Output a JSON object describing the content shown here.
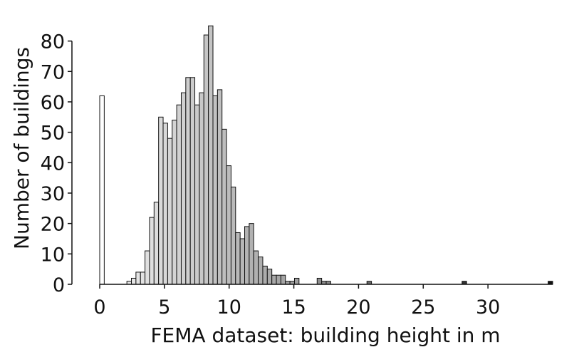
{
  "chart_data": {
    "type": "bar",
    "title": "",
    "xlabel": "FEMA dataset: building height in m",
    "ylabel": "Number of buildings",
    "xlim": [
      0,
      35
    ],
    "ylim": [
      0,
      86
    ],
    "xticks": [
      0,
      5,
      10,
      15,
      20,
      25,
      30
    ],
    "yticks": [
      0,
      10,
      20,
      30,
      40,
      50,
      60,
      70,
      80
    ],
    "grid": false,
    "bin_width": 0.35,
    "bins": [
      {
        "x0": 0.0,
        "x1": 0.35,
        "value": 62,
        "color": "#ffffff"
      },
      {
        "x0": 2.1,
        "x1": 2.45,
        "value": 1,
        "color": "#e8e8e8"
      },
      {
        "x0": 2.45,
        "x1": 2.8,
        "value": 2,
        "color": "#e6e6e6"
      },
      {
        "x0": 2.8,
        "x1": 3.15,
        "value": 4,
        "color": "#e4e4e4"
      },
      {
        "x0": 3.15,
        "x1": 3.5,
        "value": 4,
        "color": "#e2e2e2"
      },
      {
        "x0": 3.5,
        "x1": 3.85,
        "value": 11,
        "color": "#e0e0e0"
      },
      {
        "x0": 3.85,
        "x1": 4.2,
        "value": 22,
        "color": "#dedede"
      },
      {
        "x0": 4.2,
        "x1": 4.55,
        "value": 27,
        "color": "#dcdcdc"
      },
      {
        "x0": 4.55,
        "x1": 4.9,
        "value": 55,
        "color": "#dadada"
      },
      {
        "x0": 4.9,
        "x1": 5.25,
        "value": 53,
        "color": "#d8d8d8"
      },
      {
        "x0": 5.25,
        "x1": 5.6,
        "value": 48,
        "color": "#d6d6d6"
      },
      {
        "x0": 5.6,
        "x1": 5.95,
        "value": 54,
        "color": "#d4d4d4"
      },
      {
        "x0": 5.95,
        "x1": 6.3,
        "value": 59,
        "color": "#d2d2d2"
      },
      {
        "x0": 6.3,
        "x1": 6.65,
        "value": 63,
        "color": "#d0d0d0"
      },
      {
        "x0": 6.65,
        "x1": 7.0,
        "value": 68,
        "color": "#cecece"
      },
      {
        "x0": 7.0,
        "x1": 7.35,
        "value": 68,
        "color": "#cccccc"
      },
      {
        "x0": 7.35,
        "x1": 7.7,
        "value": 59,
        "color": "#cacaca"
      },
      {
        "x0": 7.7,
        "x1": 8.05,
        "value": 63,
        "color": "#c8c8c8"
      },
      {
        "x0": 8.05,
        "x1": 8.4,
        "value": 82,
        "color": "#c6c6c6"
      },
      {
        "x0": 8.4,
        "x1": 8.75,
        "value": 85,
        "color": "#c4c4c4"
      },
      {
        "x0": 8.75,
        "x1": 9.1,
        "value": 62,
        "color": "#c2c2c2"
      },
      {
        "x0": 9.1,
        "x1": 9.45,
        "value": 64,
        "color": "#c0c0c0"
      },
      {
        "x0": 9.45,
        "x1": 9.8,
        "value": 51,
        "color": "#bebebe"
      },
      {
        "x0": 9.8,
        "x1": 10.15,
        "value": 39,
        "color": "#bcbcbc"
      },
      {
        "x0": 10.15,
        "x1": 10.5,
        "value": 32,
        "color": "#bababa"
      },
      {
        "x0": 10.5,
        "x1": 10.85,
        "value": 17,
        "color": "#b8b8b8"
      },
      {
        "x0": 10.85,
        "x1": 11.2,
        "value": 15,
        "color": "#b6b6b6"
      },
      {
        "x0": 11.2,
        "x1": 11.55,
        "value": 19,
        "color": "#b4b4b4"
      },
      {
        "x0": 11.55,
        "x1": 11.9,
        "value": 20,
        "color": "#b2b2b2"
      },
      {
        "x0": 11.9,
        "x1": 12.25,
        "value": 11,
        "color": "#b0b0b0"
      },
      {
        "x0": 12.25,
        "x1": 12.6,
        "value": 9,
        "color": "#aeaeae"
      },
      {
        "x0": 12.6,
        "x1": 12.95,
        "value": 6,
        "color": "#acacac"
      },
      {
        "x0": 12.95,
        "x1": 13.3,
        "value": 5,
        "color": "#aaaaaa"
      },
      {
        "x0": 13.3,
        "x1": 13.65,
        "value": 3,
        "color": "#a8a8a8"
      },
      {
        "x0": 13.65,
        "x1": 14.0,
        "value": 3,
        "color": "#a6a6a6"
      },
      {
        "x0": 14.0,
        "x1": 14.35,
        "value": 3,
        "color": "#a4a4a4"
      },
      {
        "x0": 14.35,
        "x1": 14.7,
        "value": 1,
        "color": "#a2a2a2"
      },
      {
        "x0": 14.7,
        "x1": 15.05,
        "value": 1,
        "color": "#a0a0a0"
      },
      {
        "x0": 15.05,
        "x1": 15.4,
        "value": 2,
        "color": "#9e9e9e"
      },
      {
        "x0": 16.8,
        "x1": 17.15,
        "value": 2,
        "color": "#8e8e8e"
      },
      {
        "x0": 17.15,
        "x1": 17.5,
        "value": 1,
        "color": "#8c8c8c"
      },
      {
        "x0": 17.5,
        "x1": 17.85,
        "value": 1,
        "color": "#8a8a8a"
      },
      {
        "x0": 20.65,
        "x1": 21.0,
        "value": 1,
        "color": "#6a6a6a"
      },
      {
        "x0": 28.0,
        "x1": 28.35,
        "value": 1,
        "color": "#333333"
      },
      {
        "x0": 34.65,
        "x1": 35.0,
        "value": 1,
        "color": "#111111"
      }
    ]
  }
}
